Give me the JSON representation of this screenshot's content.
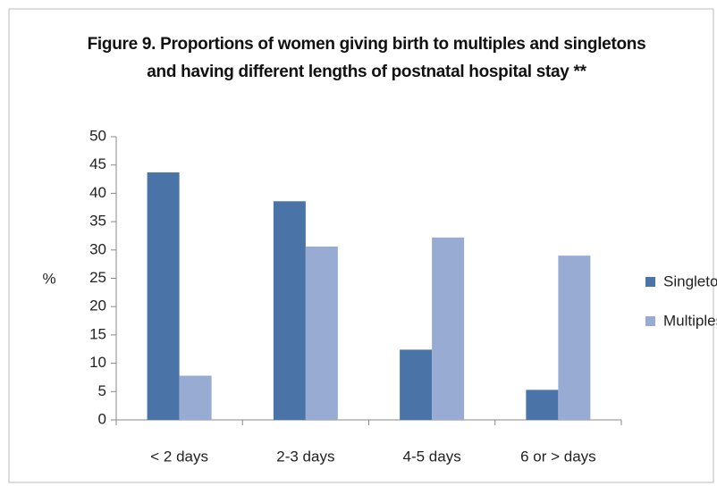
{
  "chart_data": {
    "type": "bar",
    "title": "Figure 9. Proportions of women giving birth to multiples and singletons and having different lengths of postnatal hospital stay **",
    "y_label": "%",
    "categories": [
      "< 2 days",
      "2-3 days",
      "4-5 days",
      "6 or > days"
    ],
    "series": [
      {
        "name": "Singletons",
        "color": "#4a73a8",
        "values": [
          43.7,
          38.6,
          12.4,
          5.3
        ]
      },
      {
        "name": "Multiples",
        "color": "#98acd3",
        "values": [
          7.8,
          30.6,
          32.2,
          29.0
        ]
      }
    ],
    "ylim": [
      0,
      50
    ],
    "yticks": [
      0,
      5,
      10,
      15,
      20,
      25,
      30,
      35,
      40,
      45,
      50
    ],
    "legend": "right"
  }
}
